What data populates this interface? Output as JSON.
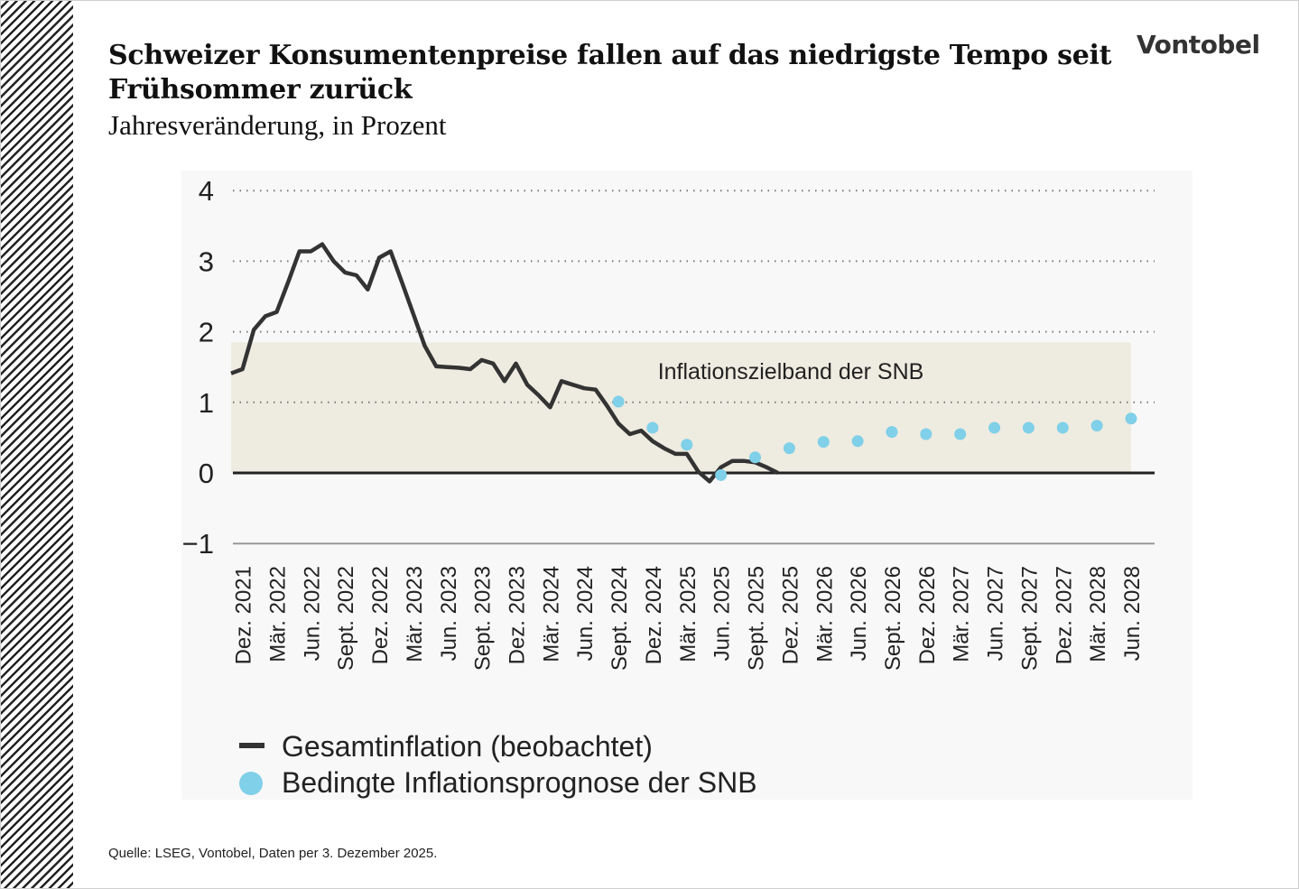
{
  "title": "Schweizer Konsumentenpreise fallen auf das niedrigste Tempo seit Frühsommer zurück",
  "subtitle": "Jahresveränderung, in Prozent",
  "logo": "Vontobel",
  "source": "Quelle: LSEG, Vontobel, Daten per 3. Dezember 2025.",
  "chart_data": {
    "type": "line",
    "title": "Schweizer Konsumentenpreise fallen auf das niedrigste Tempo seit Frühsommer zurück",
    "subtitle": "Jahresveränderung, in Prozent",
    "ylim": [
      -1,
      4
    ],
    "yticks": [
      "4",
      "3",
      "2",
      "1",
      "0",
      "−1"
    ],
    "ytick_values": [
      4,
      3,
      2,
      1,
      0,
      -1
    ],
    "grid": "dotted horizontal",
    "xlim": [
      "2021-11",
      "2028-06"
    ],
    "xtick_labels": [
      "Dez. 2021",
      "Mär. 2022",
      "Jun. 2022",
      "Sept. 2022",
      "Dez. 2022",
      "Mär. 2023",
      "Jun. 2023",
      "Sept. 2023",
      "Dez. 2023",
      "Mär. 2024",
      "Jun. 2024",
      "Sept. 2024",
      "Dez. 2024",
      "Mär. 2025",
      "Jun. 2025",
      "Sept. 2025",
      "Dez. 2025",
      "Mär. 2026",
      "Jun. 2026",
      "Sept. 2026",
      "Dez. 2026",
      "Mär. 2027",
      "Jun. 2027",
      "Sept. 2027",
      "Dez. 2027",
      "Mär. 2028",
      "Jun. 2028"
    ],
    "xtick_months": [
      "2021-12",
      "2022-03",
      "2022-06",
      "2022-09",
      "2022-12",
      "2023-03",
      "2023-06",
      "2023-09",
      "2023-12",
      "2024-03",
      "2024-06",
      "2024-09",
      "2024-12",
      "2025-03",
      "2025-06",
      "2025-09",
      "2025-12",
      "2026-03",
      "2026-06",
      "2026-09",
      "2026-12",
      "2027-03",
      "2027-06",
      "2027-09",
      "2027-12",
      "2028-03",
      "2028-06"
    ],
    "band": {
      "label": "Inflationszielband der SNB",
      "y0": 0,
      "y1": 1.85,
      "x0": "2021-11",
      "x1": "2028-06",
      "color": "#eeebe0"
    },
    "legend": "bottom-left",
    "series": [
      {
        "name": "Gesamtinflation (beobachtet)",
        "style": "line",
        "color": "#333333",
        "x": [
          "2021-11",
          "2021-12",
          "2022-01",
          "2022-02",
          "2022-03",
          "2022-04",
          "2022-05",
          "2022-06",
          "2022-07",
          "2022-08",
          "2022-09",
          "2022-10",
          "2022-11",
          "2022-12",
          "2023-01",
          "2023-02",
          "2023-03",
          "2023-04",
          "2023-05",
          "2023-06",
          "2023-07",
          "2023-08",
          "2023-09",
          "2023-10",
          "2023-11",
          "2023-12",
          "2024-01",
          "2024-02",
          "2024-03",
          "2024-04",
          "2024-05",
          "2024-06",
          "2024-07",
          "2024-08",
          "2024-09",
          "2024-10",
          "2024-11",
          "2024-12",
          "2025-01",
          "2025-02",
          "2025-03",
          "2025-04",
          "2025-05",
          "2025-06",
          "2025-07",
          "2025-08",
          "2025-09",
          "2025-10",
          "2025-11"
        ],
        "y": [
          1.41,
          1.47,
          2.03,
          2.22,
          2.28,
          2.7,
          3.14,
          3.14,
          3.24,
          3.0,
          2.84,
          2.8,
          2.6,
          3.05,
          3.14,
          2.7,
          2.25,
          1.8,
          1.51,
          1.5,
          1.49,
          1.47,
          1.6,
          1.55,
          1.3,
          1.55,
          1.25,
          1.1,
          0.93,
          1.3,
          1.25,
          1.2,
          1.18,
          0.95,
          0.7,
          0.55,
          0.6,
          0.45,
          0.35,
          0.27,
          0.27,
          0.02,
          -0.12,
          0.08,
          0.17,
          0.17,
          0.15,
          0.08,
          0.0
        ]
      },
      {
        "name": "Bedingte Inflationsprognose der SNB",
        "style": "dots",
        "color": "#7fd0e8",
        "x": [
          "2024-09",
          "2024-12",
          "2025-03",
          "2025-06",
          "2025-09",
          "2025-12",
          "2026-03",
          "2026-06",
          "2026-09",
          "2026-12",
          "2027-03",
          "2027-06",
          "2027-09",
          "2027-12",
          "2028-03",
          "2028-06"
        ],
        "y": [
          1.01,
          0.64,
          0.4,
          -0.03,
          0.22,
          0.35,
          0.44,
          0.45,
          0.58,
          0.55,
          0.55,
          0.64,
          0.64,
          0.64,
          0.67,
          0.77
        ]
      }
    ]
  }
}
